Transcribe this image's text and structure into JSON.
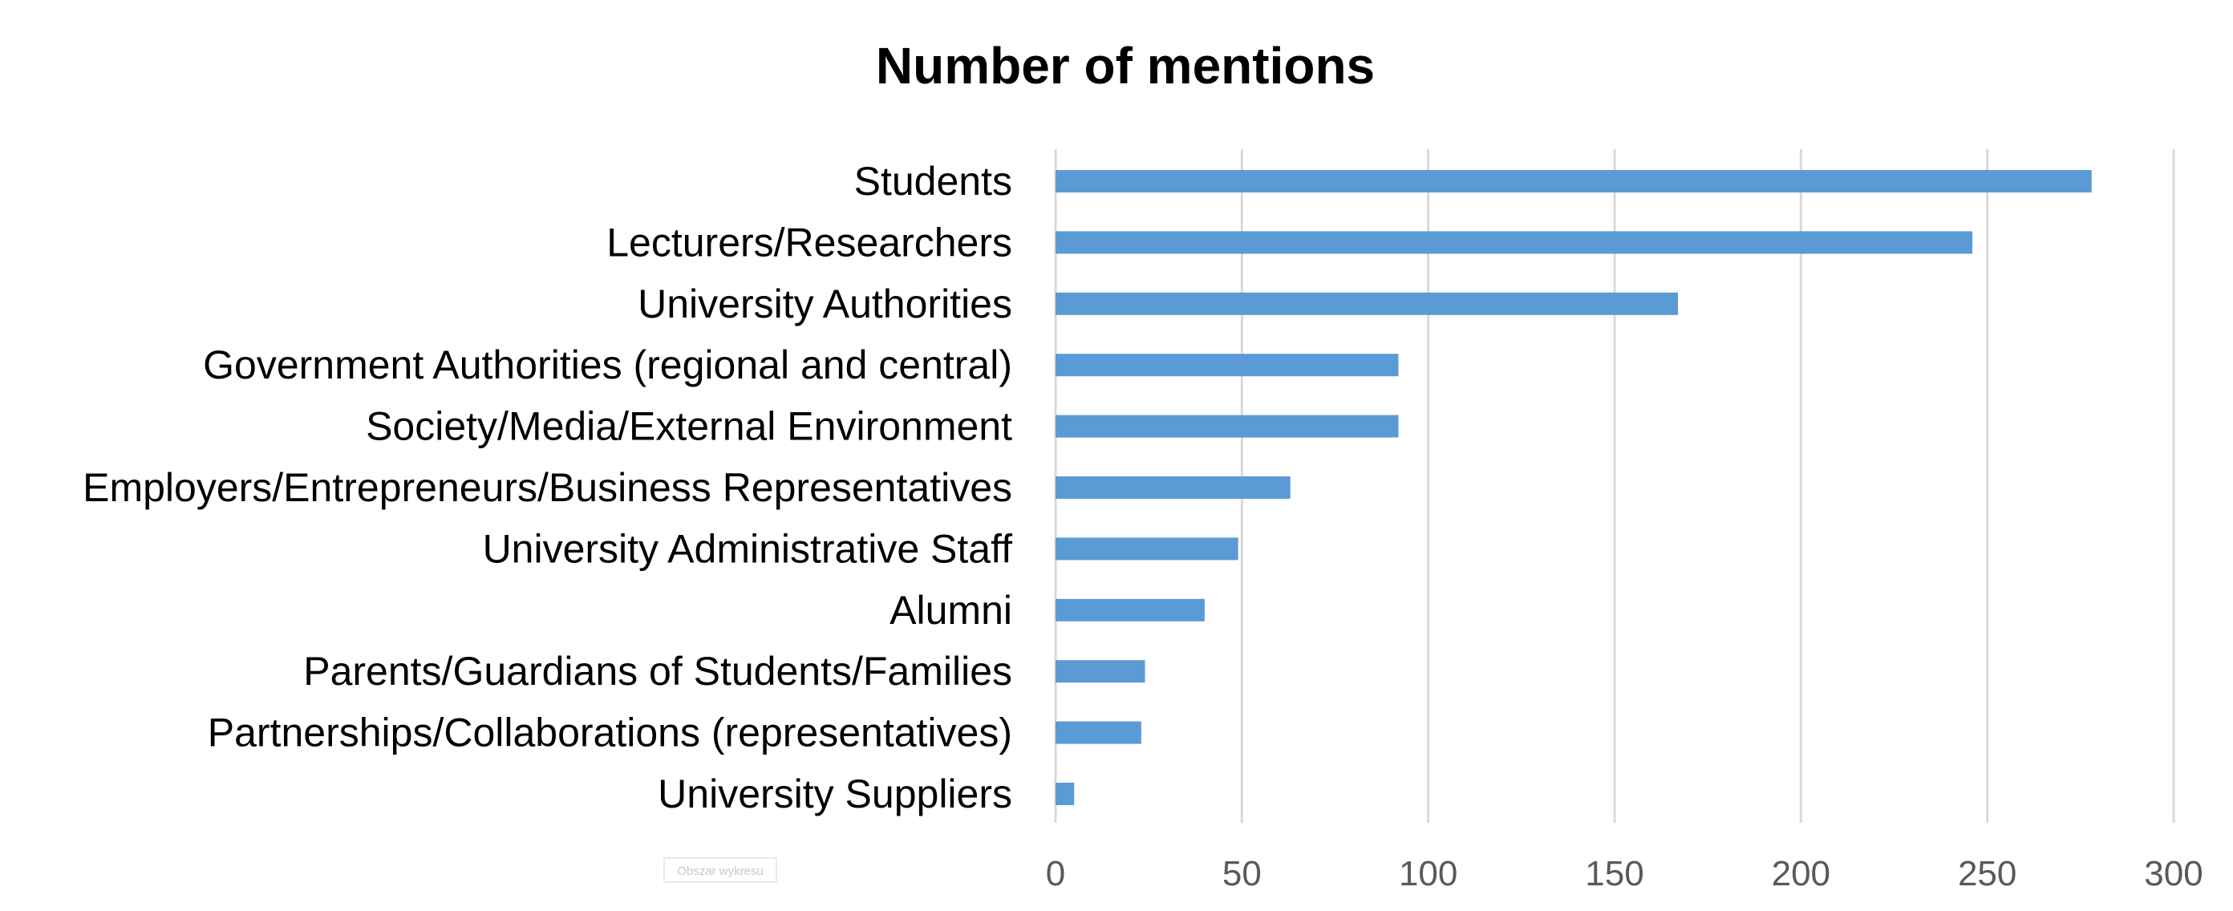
{
  "chart_data": {
    "type": "bar",
    "orientation": "horizontal",
    "title": "Number of mentions",
    "xlabel": "",
    "ylabel": "",
    "categories": [
      "Students",
      "Lecturers/Researchers",
      "University Authorities",
      "Government Authorities (regional and central)",
      "Society/Media/External Environment",
      "Employers/Entrepreneurs/Business Representatives",
      "University Administrative Staff",
      "Alumni",
      "Parents/Guardians of Students/Families",
      "Partnerships/Collaborations (representatives)",
      "University Suppliers"
    ],
    "values": [
      278,
      246,
      167,
      92,
      92,
      63,
      49,
      40,
      24,
      23,
      5
    ],
    "xlim": [
      0,
      300
    ],
    "x_ticks": [
      0,
      50,
      100,
      150,
      200,
      250,
      300
    ],
    "grid": true,
    "legend": "none",
    "bar_color": "#5b9bd5"
  },
  "plot_area_tag": "Obszar wykresu"
}
